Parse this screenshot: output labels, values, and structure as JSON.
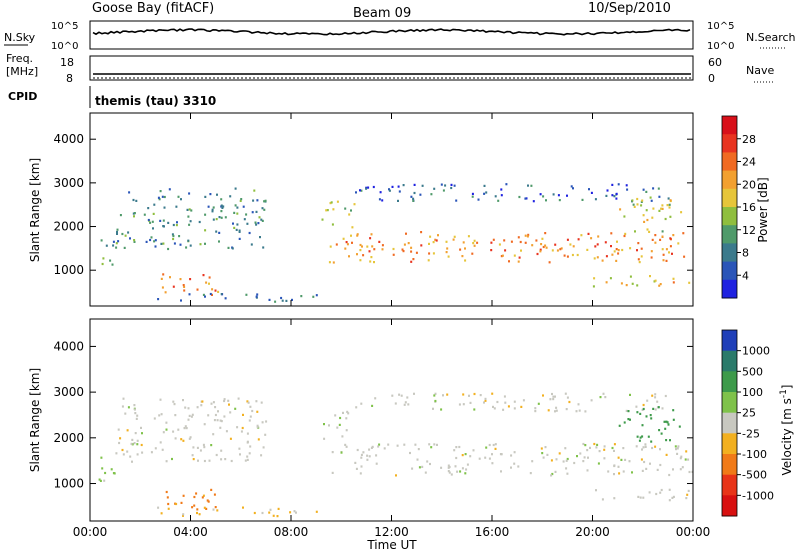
{
  "header": {
    "title": "Goose Bay (fitACF)",
    "beam": "Beam 09",
    "date": "10/Sep/2010"
  },
  "noise_panel": {
    "left_label": "N.Sky",
    "right_label": "N.Search",
    "tick_top": "10^5",
    "tick_bottom": "10^0"
  },
  "freq_panel": {
    "left_label_1": "Freq.",
    "left_label_2": "[MHz]",
    "left_tick_top": "18",
    "left_tick_bottom": "8",
    "right_label": "Nave",
    "right_tick_top": "60",
    "right_tick_bottom": "0"
  },
  "cpid": {
    "label": "CPID",
    "value": "themis (tau) 3310"
  },
  "chart_data": [
    {
      "type": "heatmap",
      "panel": "power",
      "ylabel": "Slant Range [km]",
      "yticks": [
        "1000",
        "2000",
        "3000",
        "4000"
      ],
      "ylim": [
        180,
        4600
      ],
      "xlim_hours": [
        0,
        24
      ],
      "colorbar": {
        "label": "Power [dB]",
        "ticks": [
          "4",
          "8",
          "12",
          "16",
          "20",
          "24",
          "28"
        ],
        "colors": [
          "#1f22e0",
          "#2a55b8",
          "#3b7a8c",
          "#4f9a6a",
          "#8fbe3e",
          "#e6c53a",
          "#f2a030",
          "#f06a22",
          "#e83420",
          "#d8101a"
        ]
      },
      "echo_regions": [
        {
          "x": [
            0.3,
            1.0
          ],
          "y": [
            1000,
            1800
          ],
          "value": 10
        },
        {
          "x": [
            1.0,
            7.0
          ],
          "y": [
            1500,
            2900
          ],
          "value": 9
        },
        {
          "x": [
            2.8,
            5.2
          ],
          "y": [
            450,
            950
          ],
          "value": 24
        },
        {
          "x": [
            2.5,
            9.0
          ],
          "y": [
            300,
            500
          ],
          "value": 7
        },
        {
          "x": [
            9.2,
            10.5
          ],
          "y": [
            2000,
            2600
          ],
          "value": 14
        },
        {
          "x": [
            9.5,
            24.0
          ],
          "y": [
            1200,
            1900
          ],
          "value": 22
        },
        {
          "x": [
            10.5,
            23.0
          ],
          "y": [
            2600,
            3000
          ],
          "value": 6
        },
        {
          "x": [
            21.0,
            23.5
          ],
          "y": [
            1900,
            2700
          ],
          "value": 16
        },
        {
          "x": [
            20.0,
            24.0
          ],
          "y": [
            650,
            900
          ],
          "value": 18
        }
      ]
    },
    {
      "type": "heatmap",
      "panel": "velocity",
      "ylabel": "Slant Range [km]",
      "yticks": [
        "1000",
        "2000",
        "3000",
        "4000"
      ],
      "ylim": [
        180,
        4600
      ],
      "xticks": [
        "00:00",
        "04:00",
        "08:00",
        "12:00",
        "16:00",
        "20:00",
        "00:00"
      ],
      "xlabel": "Time UT",
      "xlim_hours": [
        0,
        24
      ],
      "colorbar": {
        "label": "Velocity [m s-1]",
        "ticks": [
          "1000",
          "500",
          "100",
          "25",
          "-25",
          "-100",
          "-500",
          "-1000"
        ],
        "colors": [
          "#1f3fb8",
          "#2a7a6a",
          "#3d9a4a",
          "#7fc24a",
          "#c8c8c0",
          "#f2b020",
          "#f07a18",
          "#e83418",
          "#d81010"
        ]
      },
      "echo_regions": [
        {
          "x": [
            0.3,
            1.0
          ],
          "y": [
            1000,
            1800
          ],
          "value": 50
        },
        {
          "x": [
            1.0,
            7.0
          ],
          "y": [
            1500,
            2900
          ],
          "value": 0
        },
        {
          "x": [
            2.8,
            5.2
          ],
          "y": [
            450,
            950
          ],
          "value": -120
        },
        {
          "x": [
            2.5,
            9.0
          ],
          "y": [
            300,
            500
          ],
          "value": -40
        },
        {
          "x": [
            9.2,
            10.5
          ],
          "y": [
            2000,
            2600
          ],
          "value": 0
        },
        {
          "x": [
            9.5,
            24.0
          ],
          "y": [
            1200,
            1900
          ],
          "value": 0
        },
        {
          "x": [
            10.5,
            23.0
          ],
          "y": [
            2600,
            3000
          ],
          "value": 0
        },
        {
          "x": [
            21.0,
            23.5
          ],
          "y": [
            1900,
            2700
          ],
          "value": 150
        },
        {
          "x": [
            20.0,
            24.0
          ],
          "y": [
            650,
            900
          ],
          "value": 0
        }
      ]
    }
  ]
}
